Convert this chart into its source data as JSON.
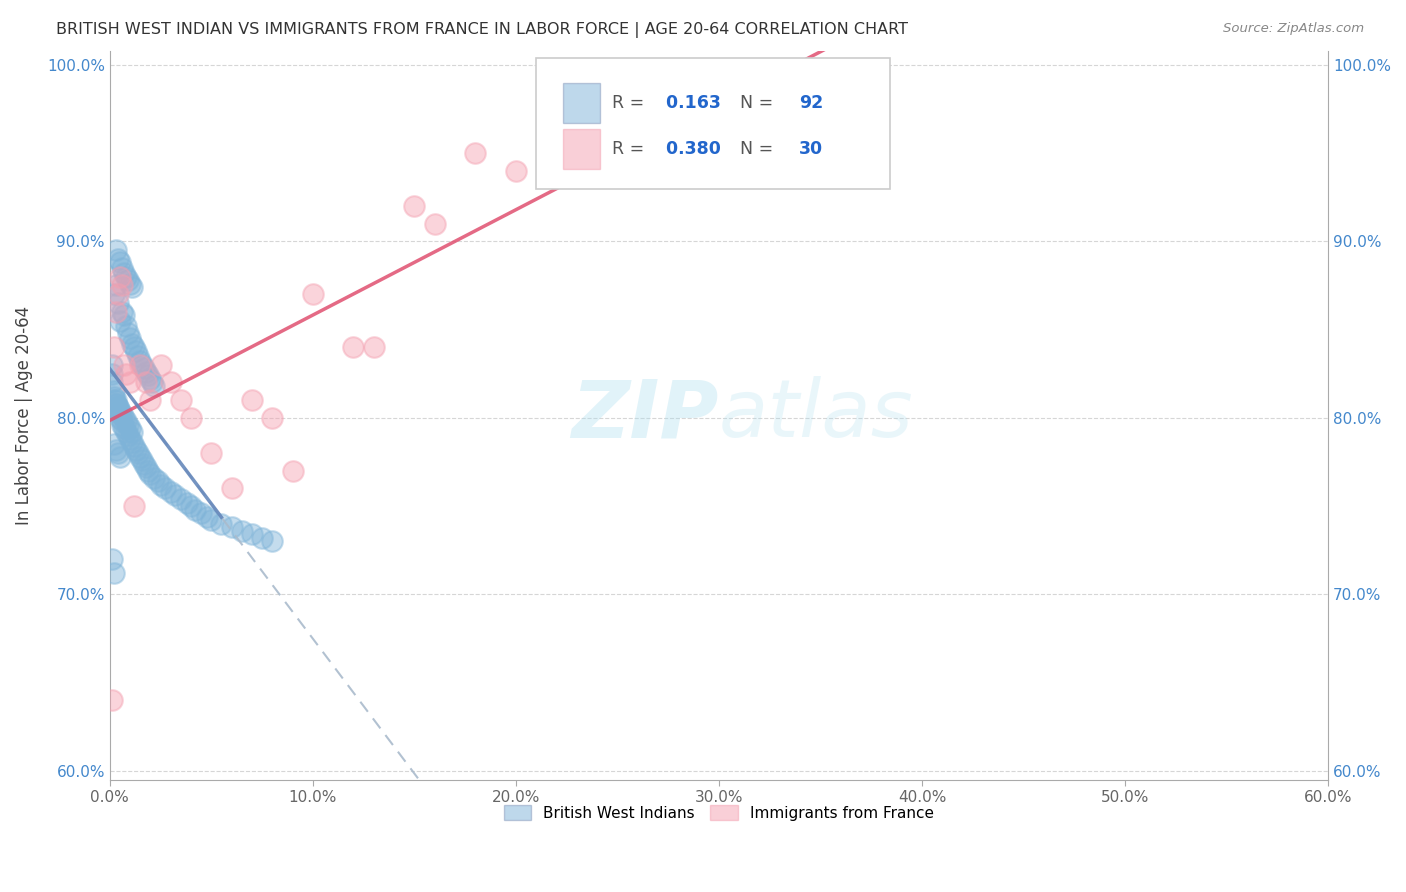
{
  "title": "BRITISH WEST INDIAN VS IMMIGRANTS FROM FRANCE IN LABOR FORCE | AGE 20-64 CORRELATION CHART",
  "source": "Source: ZipAtlas.com",
  "ylabel": "In Labor Force | Age 20-64",
  "xlim": [
    0.0,
    0.6
  ],
  "ylim": [
    0.595,
    1.008
  ],
  "xticks": [
    0.0,
    0.1,
    0.2,
    0.3,
    0.4,
    0.5,
    0.6
  ],
  "yticks": [
    0.6,
    0.7,
    0.8,
    0.9,
    1.0
  ],
  "xtick_labels": [
    "0.0%",
    "10.0%",
    "20.0%",
    "30.0%",
    "40.0%",
    "50.0%",
    "60.0%"
  ],
  "ytick_labels": [
    "60.0%",
    "70.0%",
    "80.0%",
    "90.0%",
    "100.0%"
  ],
  "blue_color": "#7EB3D8",
  "pink_color": "#F4A0B0",
  "blue_line_color": "#6688BB",
  "pink_line_color": "#E05070",
  "grid_color": "#CCCCCC",
  "R_blue": 0.163,
  "N_blue": 92,
  "R_pink": 0.38,
  "N_pink": 30,
  "legend_label_blue": "British West Indians",
  "legend_label_pink": "Immigrants from France",
  "watermark": "ZIPatlas",
  "blue_scatter_x": [
    0.002,
    0.003,
    0.004,
    0.005,
    0.006,
    0.007,
    0.008,
    0.009,
    0.01,
    0.011,
    0.012,
    0.013,
    0.014,
    0.015,
    0.016,
    0.017,
    0.018,
    0.019,
    0.02,
    0.021,
    0.022,
    0.003,
    0.004,
    0.005,
    0.006,
    0.007,
    0.008,
    0.009,
    0.01,
    0.011,
    0.002,
    0.003,
    0.004,
    0.005,
    0.006,
    0.007,
    0.008,
    0.009,
    0.01,
    0.011,
    0.002,
    0.003,
    0.004,
    0.005,
    0.001,
    0.001,
    0.001,
    0.002,
    0.002,
    0.003,
    0.003,
    0.004,
    0.004,
    0.005,
    0.005,
    0.006,
    0.006,
    0.007,
    0.008,
    0.009,
    0.01,
    0.011,
    0.012,
    0.013,
    0.014,
    0.015,
    0.016,
    0.017,
    0.018,
    0.019,
    0.02,
    0.022,
    0.024,
    0.025,
    0.027,
    0.03,
    0.032,
    0.035,
    0.038,
    0.04,
    0.042,
    0.045,
    0.048,
    0.05,
    0.055,
    0.06,
    0.065,
    0.07,
    0.075,
    0.08,
    0.001,
    0.002
  ],
  "blue_scatter_y": [
    0.87,
    0.875,
    0.865,
    0.855,
    0.86,
    0.858,
    0.852,
    0.848,
    0.845,
    0.842,
    0.84,
    0.838,
    0.835,
    0.832,
    0.83,
    0.828,
    0.826,
    0.824,
    0.822,
    0.82,
    0.818,
    0.895,
    0.89,
    0.888,
    0.885,
    0.882,
    0.88,
    0.878,
    0.876,
    0.874,
    0.81,
    0.808,
    0.806,
    0.804,
    0.802,
    0.8,
    0.798,
    0.796,
    0.794,
    0.792,
    0.785,
    0.782,
    0.78,
    0.778,
    0.83,
    0.825,
    0.82,
    0.815,
    0.812,
    0.81,
    0.808,
    0.806,
    0.804,
    0.802,
    0.8,
    0.798,
    0.796,
    0.794,
    0.792,
    0.79,
    0.788,
    0.786,
    0.784,
    0.782,
    0.78,
    0.778,
    0.776,
    0.774,
    0.772,
    0.77,
    0.768,
    0.766,
    0.764,
    0.762,
    0.76,
    0.758,
    0.756,
    0.754,
    0.752,
    0.75,
    0.748,
    0.746,
    0.744,
    0.742,
    0.74,
    0.738,
    0.736,
    0.734,
    0.732,
    0.73,
    0.72,
    0.712
  ],
  "pink_scatter_x": [
    0.001,
    0.002,
    0.003,
    0.004,
    0.005,
    0.006,
    0.007,
    0.008,
    0.01,
    0.012,
    0.015,
    0.018,
    0.02,
    0.025,
    0.03,
    0.035,
    0.04,
    0.05,
    0.06,
    0.08,
    0.1,
    0.12,
    0.15,
    0.18,
    0.2,
    0.22,
    0.16,
    0.13,
    0.09,
    0.07
  ],
  "pink_scatter_y": [
    0.64,
    0.84,
    0.86,
    0.87,
    0.88,
    0.875,
    0.83,
    0.825,
    0.82,
    0.75,
    0.83,
    0.82,
    0.81,
    0.83,
    0.82,
    0.81,
    0.8,
    0.78,
    0.76,
    0.8,
    0.87,
    0.84,
    0.92,
    0.95,
    0.94,
    0.96,
    0.91,
    0.84,
    0.77,
    0.81
  ],
  "blue_line_x": [
    0.0,
    0.6
  ],
  "pink_line_x": [
    0.0,
    0.6
  ]
}
